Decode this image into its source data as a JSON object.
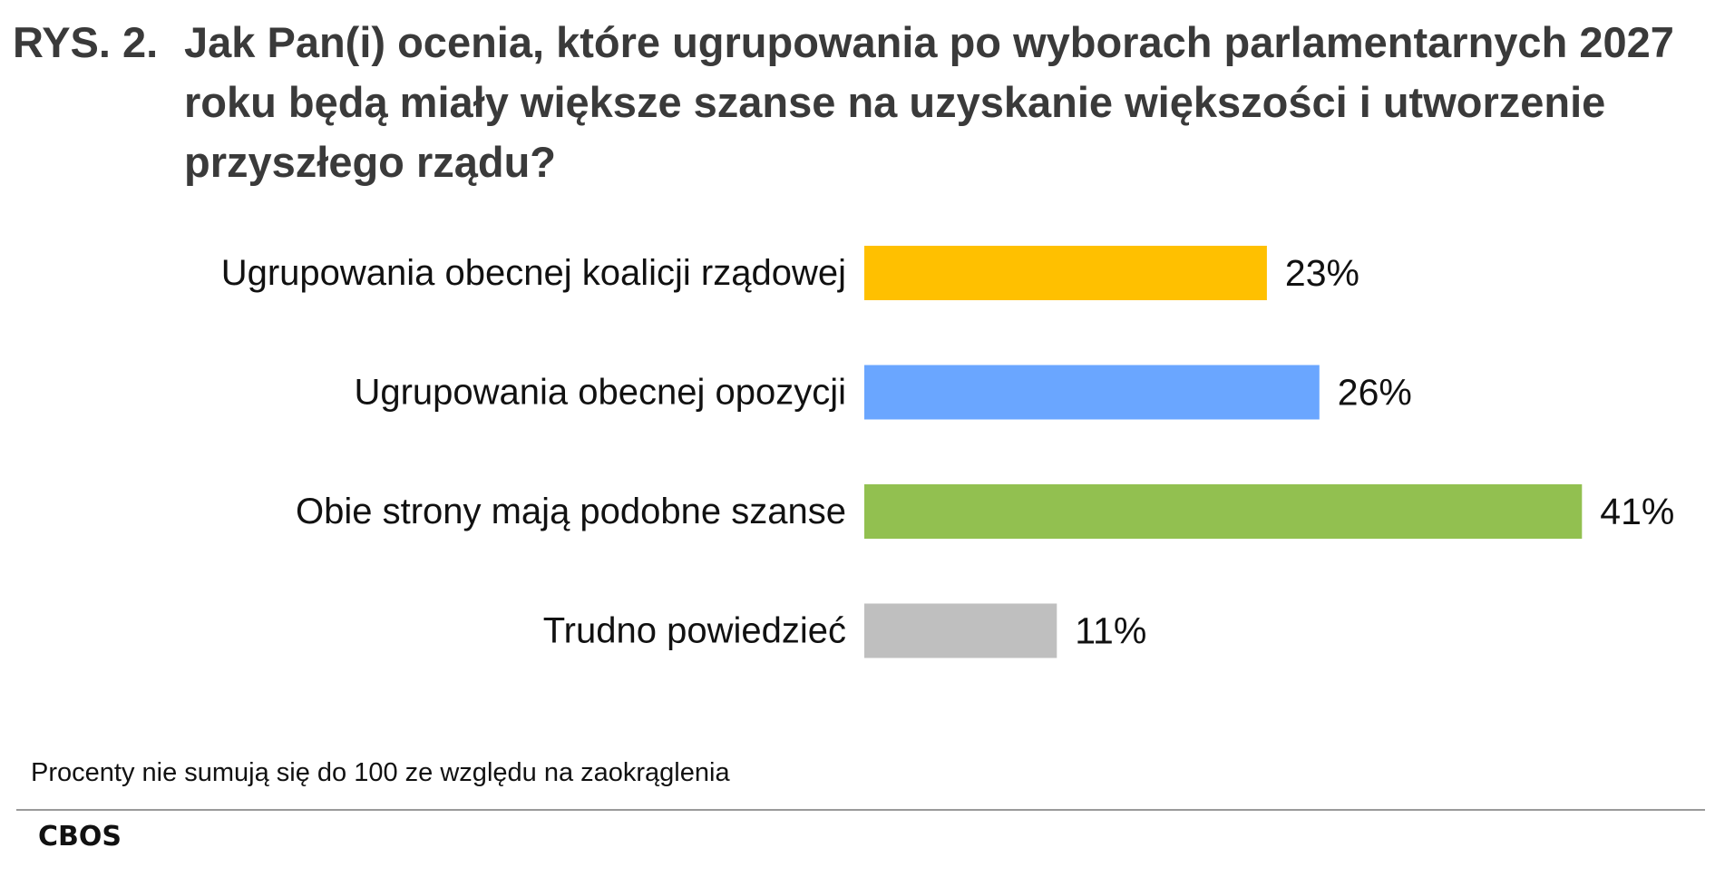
{
  "figure_label": "RYS. 2.",
  "title": "Jak Pan(i) ocenia, które ugrupowania po wyborach parlamentarnych 2027 roku będą miały większe szanse na uzyskanie większości i utworzenie przyszłego rządu?",
  "note": "Procenty nie sumują się do 100 ze względu na zaokrąglenia",
  "source": "CBOS",
  "chart_data": {
    "type": "bar",
    "orientation": "horizontal",
    "categories": [
      "Ugrupowania obecnej koalicji rządowej",
      "Ugrupowania obecnej opozycji",
      "Obie strony mają podobne szanse",
      "Trudno powiedzieć"
    ],
    "values": [
      23,
      26,
      41,
      11
    ],
    "value_labels": [
      "23%",
      "26%",
      "41%",
      "11%"
    ],
    "colors": [
      "#FFC000",
      "#6AA6FF",
      "#92C050",
      "#BFBFBF"
    ],
    "unit": "%",
    "grid": false,
    "legend": "none"
  }
}
